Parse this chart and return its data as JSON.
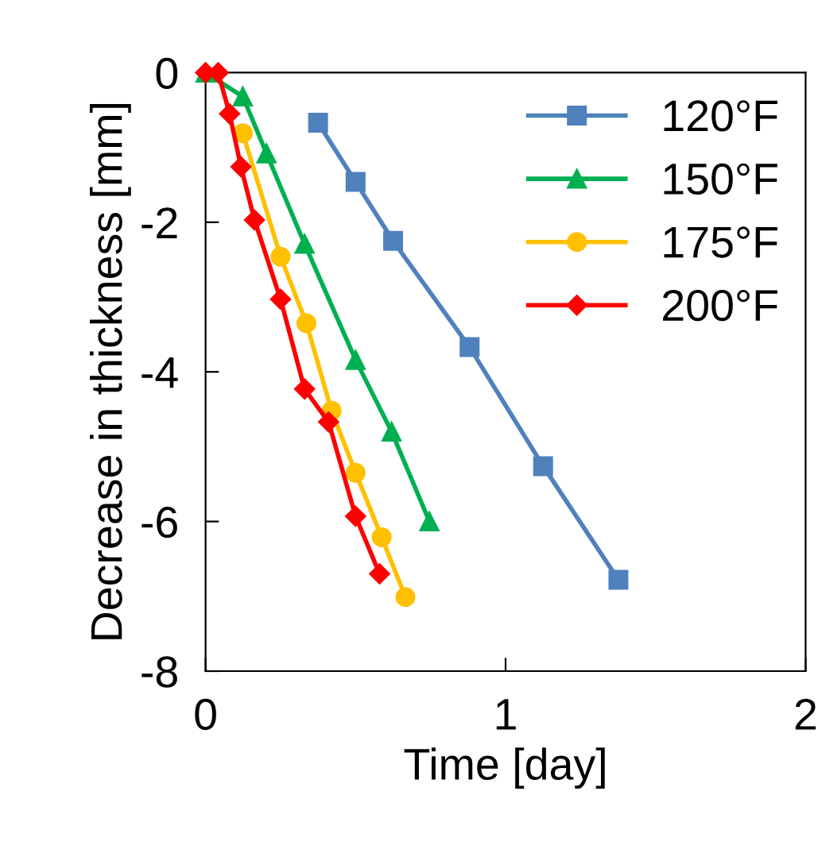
{
  "chart_data": {
    "type": "line",
    "xlabel": "Time [day]",
    "ylabel": "Decrease in thickness [mm]",
    "xlim": [
      0,
      2
    ],
    "xticks": [
      0,
      1,
      2
    ],
    "ylim": [
      -8,
      0
    ],
    "yticks": [
      -8,
      -6,
      -4,
      -2,
      0
    ],
    "grid": false,
    "legend": "top right",
    "series": [
      {
        "name": "120°F",
        "color": "#4f81bd",
        "marker": "square",
        "x": [
          0.375,
          0.5,
          0.625,
          0.88,
          1.125,
          1.376
        ],
        "values": [
          -0.67,
          -1.46,
          -2.25,
          -3.67,
          -5.26,
          -6.78
        ]
      },
      {
        "name": "150°F",
        "color": "#00b050",
        "marker": "triangle",
        "x": [
          0,
          0.124,
          0.203,
          0.33,
          0.5,
          0.62,
          0.746
        ],
        "values": [
          0,
          -0.32,
          -1.08,
          -2.29,
          -3.84,
          -4.8,
          -6.0
        ]
      },
      {
        "name": "175°F",
        "color": "#ffc000",
        "marker": "circle",
        "x": [
          0.124,
          0.25,
          0.336,
          0.42,
          0.5,
          0.587,
          0.666
        ],
        "values": [
          -0.81,
          -2.46,
          -3.35,
          -4.52,
          -5.35,
          -6.21,
          -7.01
        ]
      },
      {
        "name": "200°F",
        "color": "#ff0000",
        "marker": "diamond",
        "x": [
          0,
          0.042,
          0.08,
          0.118,
          0.163,
          0.25,
          0.33,
          0.41,
          0.5,
          0.58
        ],
        "values": [
          0,
          0,
          -0.55,
          -1.26,
          -1.97,
          -3.03,
          -4.23,
          -4.67,
          -5.93,
          -6.7
        ]
      }
    ]
  }
}
